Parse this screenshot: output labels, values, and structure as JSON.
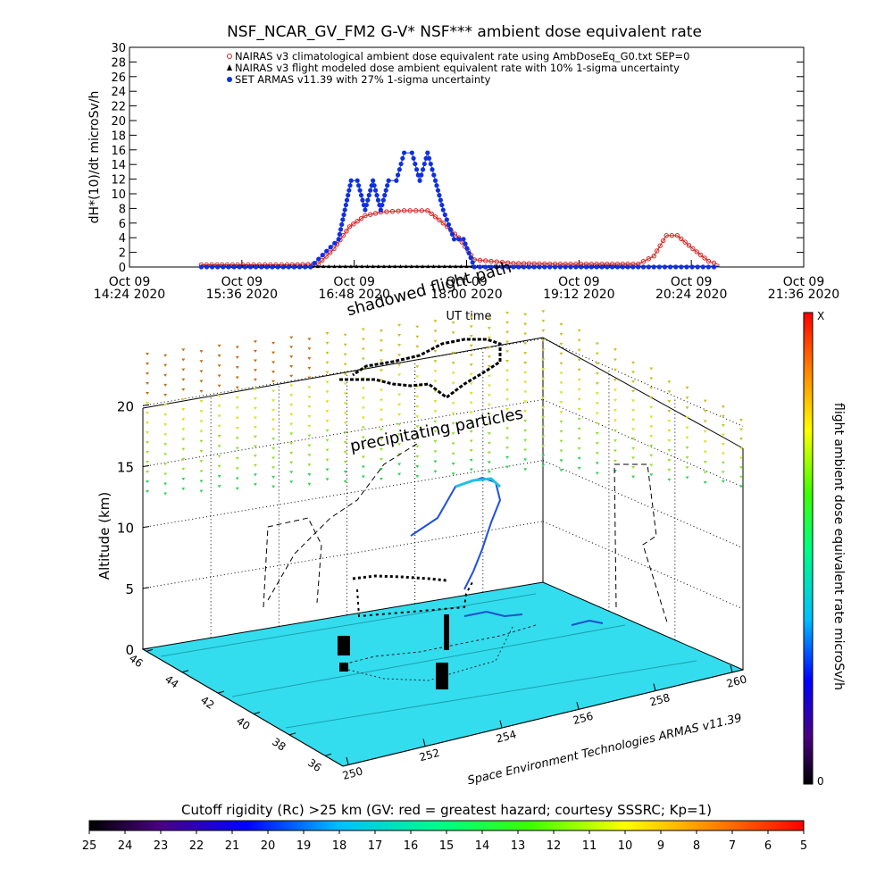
{
  "chart_data": [
    {
      "type": "line",
      "title": "NSF_NCAR_GV_FM2 G-V* NSF*** ambient dose equivalent rate",
      "xlabel": "UT time",
      "ylabel": "dH*(10)/dt microSv/h",
      "ylim": [
        0,
        30
      ],
      "yticks": [
        "0",
        "2",
        "4",
        "6",
        "8",
        "10",
        "12",
        "14",
        "16",
        "18",
        "20",
        "22",
        "24",
        "26",
        "28",
        "30"
      ],
      "xticks": [
        {
          "day": "Oct 09",
          "time": "14:24 2020"
        },
        {
          "day": "Oct 09",
          "time": "15:36 2020"
        },
        {
          "day": "Oct 09",
          "time": "16:48 2020"
        },
        {
          "day": "Oct 09",
          "time": "18:00 2020"
        },
        {
          "day": "Oct 09",
          "time": "19:12 2020"
        },
        {
          "day": "Oct 09",
          "time": "20:24 2020"
        },
        {
          "day": "Oct 09",
          "time": "21:36 2020"
        }
      ],
      "legend_position": "top-center",
      "series": [
        {
          "name": "NAIRAS v3 climatological ambient dose equivalent rate using AmbDoseEq_G0.txt SEP=0",
          "color": "#d42020",
          "marker": "circle-open",
          "x": [
            "15:10",
            "15:40",
            "16:05",
            "16:25",
            "16:35",
            "16:45",
            "16:55",
            "17:05",
            "17:20",
            "17:35",
            "17:45",
            "17:55",
            "18:05",
            "18:30",
            "19:00",
            "19:30",
            "19:50",
            "20:00",
            "20:08",
            "20:15",
            "20:25",
            "20:35",
            "20:42"
          ],
          "values": [
            0.3,
            0.3,
            0.3,
            0.4,
            2.5,
            5.5,
            7.0,
            7.5,
            7.7,
            7.7,
            6.0,
            4.0,
            1.0,
            0.5,
            0.4,
            0.4,
            0.4,
            1.5,
            4.3,
            4.3,
            2.5,
            0.8,
            0.3
          ]
        },
        {
          "name": "NAIRAS v3 flight modeled dose ambient equivalent rate with 10% 1-sigma uncertainty",
          "color": "#000000",
          "marker": "triangle",
          "x": [
            "15:10",
            "16:00",
            "17:00",
            "18:00",
            "19:00",
            "20:00",
            "20:42"
          ],
          "values": [
            0.1,
            0.1,
            0.1,
            0.1,
            0.1,
            0.1,
            0.1
          ]
        },
        {
          "name": "SET ARMAS v11.39 with 27% 1-sigma uncertainty",
          "color": "#1030e0",
          "marker": "circle-filled",
          "x": [
            "15:10",
            "16:20",
            "16:38",
            "16:42",
            "16:46",
            "16:50",
            "16:55",
            "17:00",
            "17:05",
            "17:10",
            "17:15",
            "17:20",
            "17:25",
            "17:30",
            "17:35",
            "17:40",
            "17:45",
            "17:52",
            "17:58",
            "18:05",
            "18:30",
            "19:00",
            "19:30",
            "20:00",
            "20:42"
          ],
          "values": [
            0.0,
            0.0,
            3.8,
            7.8,
            11.8,
            11.8,
            7.8,
            11.8,
            7.8,
            11.8,
            11.8,
            15.6,
            15.6,
            11.8,
            15.6,
            11.8,
            7.8,
            3.8,
            3.8,
            0.0,
            0.0,
            0.0,
            0.0,
            0.0,
            0.0
          ]
        }
      ]
    },
    {
      "type": "scatter",
      "title": "",
      "zlabel": "Altitude (km)",
      "zticks": [
        "0",
        "5",
        "10",
        "15",
        "20"
      ],
      "lat_ticks": [
        "46",
        "44",
        "42",
        "40",
        "38",
        "36"
      ],
      "lon_ticks": [
        "250",
        "252",
        "254",
        "256",
        "258",
        "260"
      ],
      "annotations": [
        "shadowed flight path",
        "precipitating particles"
      ],
      "credit": "Space Environment Technologies ARMAS v11.39",
      "colorbar": {
        "label": "flight ambient dose equivalent rate microSv/h",
        "top_label": "X",
        "bottom_label": "0"
      }
    },
    {
      "type": "heatmap",
      "title": "Cutoff rigidity (Rc) >25 km (GV: red = greatest hazard; courtesy SSSRC; Kp=1)",
      "ticks": [
        "25",
        "24",
        "23",
        "22",
        "21",
        "20",
        "19",
        "18",
        "17",
        "16",
        "15",
        "14",
        "13",
        "12",
        "11",
        "10",
        "9",
        "8",
        "7",
        "6",
        "5"
      ]
    }
  ]
}
